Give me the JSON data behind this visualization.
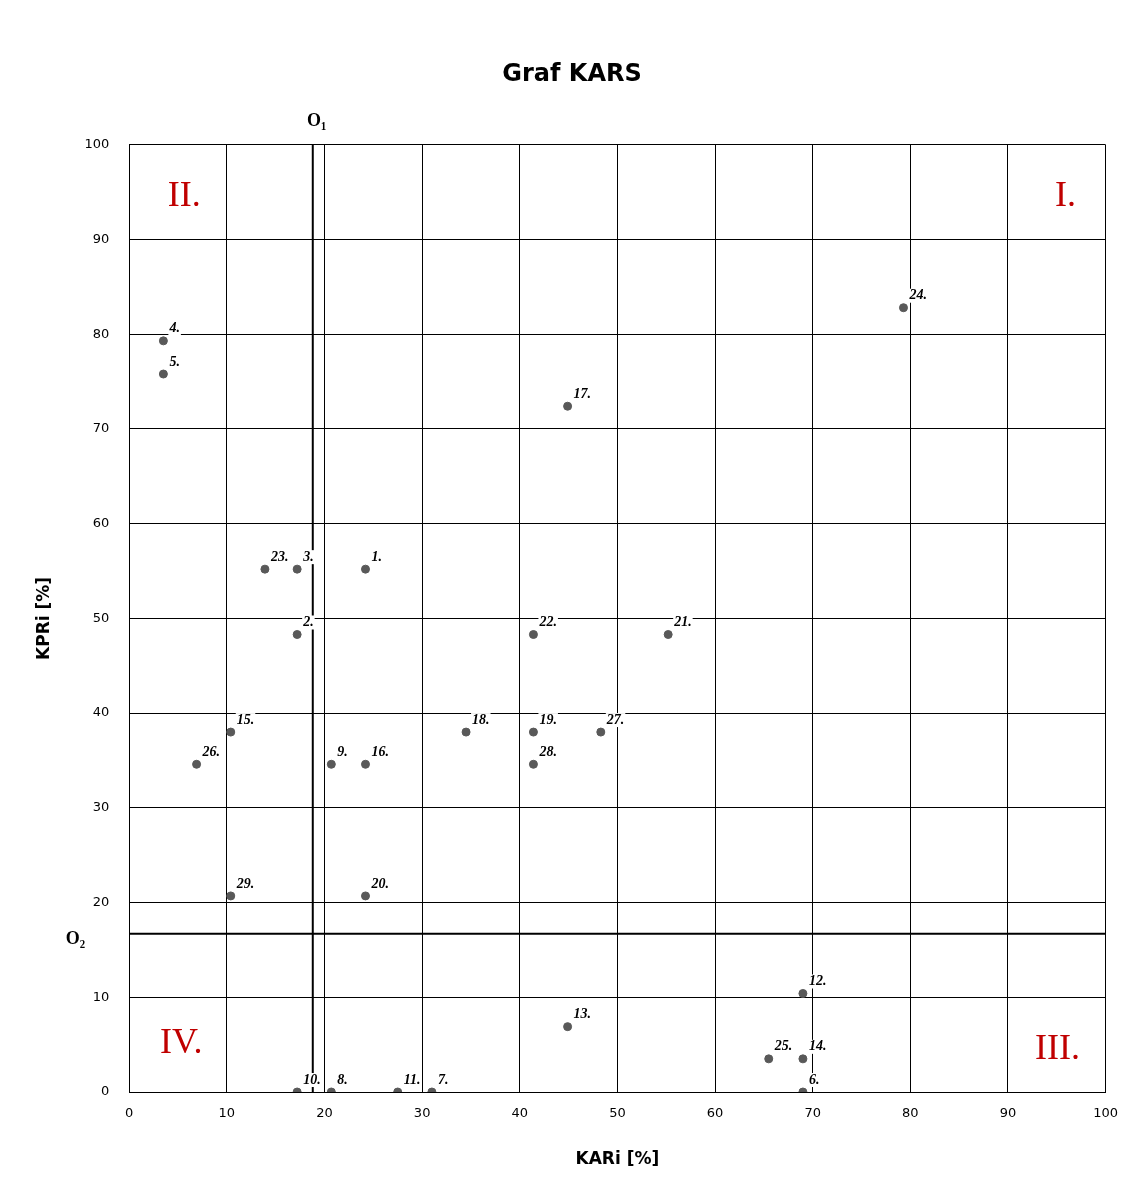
{
  "chart_data": {
    "type": "scatter",
    "title": "Graf KARS",
    "xlabel": "KARi [%]",
    "ylabel": "KPRi [%]",
    "x": [
      24.2,
      17.2,
      17.2,
      3.5,
      3.5,
      69.0,
      31.0,
      20.7,
      20.7,
      17.2,
      27.5,
      69.0,
      44.9,
      69.0,
      10.4,
      24.2,
      44.9,
      34.5,
      41.4,
      24.2,
      55.2,
      41.4,
      13.9,
      79.3,
      65.5,
      6.9,
      48.3,
      41.4,
      10.4
    ],
    "series": [
      {
        "color": "#595959",
        "values": [
          55.2,
          48.3,
          55.2,
          79.3,
          75.8,
          0,
          0,
          0,
          34.6,
          0,
          0,
          10.4,
          6.9,
          3.5,
          38.0,
          34.6,
          72.4,
          38.0,
          38.0,
          20.7,
          48.3,
          48.3,
          55.2,
          82.8,
          3.5,
          34.6,
          38.0,
          34.6,
          20.7
        ]
      }
    ],
    "xlim": [
      0,
      100
    ],
    "xticks": [
      0,
      10,
      20,
      30,
      40,
      50,
      60,
      70,
      80,
      90,
      100
    ],
    "ylim": [
      0,
      100
    ],
    "yticks": [
      0,
      10,
      20,
      30,
      40,
      50,
      60,
      70,
      80,
      90,
      100
    ],
    "grid": true,
    "legend": false,
    "marker": "circle",
    "ref_lines": [
      {
        "axis": "x",
        "value": 18.8,
        "label": "O₁",
        "color": "#000000"
      },
      {
        "axis": "y",
        "value": 16.7,
        "label": "O₂",
        "color": "#000000"
      }
    ],
    "annotations": [
      "II.",
      "I.",
      "IV.",
      "III.",
      {
        "text": "1.",
        "x": 24.2,
        "y": 55.2
      },
      {
        "text": "2.",
        "x": 17.2,
        "y": 48.3
      },
      {
        "text": "3.",
        "x": 17.2,
        "y": 55.2
      },
      {
        "text": "4.",
        "x": 3.5,
        "y": 79.3
      },
      {
        "text": "5.",
        "x": 3.5,
        "y": 75.8
      },
      {
        "text": "6.",
        "x": 69.0,
        "y": 0
      },
      {
        "text": "7.",
        "x": 31.0,
        "y": 0
      },
      {
        "text": "8.",
        "x": 20.7,
        "y": 0
      },
      {
        "text": "9.",
        "x": 20.7,
        "y": 34.6
      },
      {
        "text": "10.",
        "x": 17.2,
        "y": 0
      },
      {
        "text": "11.",
        "x": 27.5,
        "y": 0
      },
      {
        "text": "12.",
        "x": 69.0,
        "y": 10.4
      },
      {
        "text": "13.",
        "x": 44.9,
        "y": 6.9
      },
      {
        "text": "14.",
        "x": 69.0,
        "y": 3.5
      },
      {
        "text": "15.",
        "x": 10.4,
        "y": 38.0
      },
      {
        "text": "16.",
        "x": 24.2,
        "y": 34.6
      },
      {
        "text": "17.",
        "x": 44.9,
        "y": 72.4
      },
      {
        "text": "18.",
        "x": 34.5,
        "y": 38.0
      },
      {
        "text": "19.",
        "x": 41.4,
        "y": 38.0
      },
      {
        "text": "20.",
        "x": 24.2,
        "y": 20.7
      },
      {
        "text": "21.",
        "x": 55.2,
        "y": 48.3
      },
      {
        "text": "22.",
        "x": 41.4,
        "y": 48.3
      },
      {
        "text": "23.",
        "x": 13.9,
        "y": 55.2
      },
      {
        "text": "24.",
        "x": 79.3,
        "y": 82.8
      },
      {
        "text": "25.",
        "x": 65.5,
        "y": 3.5
      },
      {
        "text": "26.",
        "x": 6.9,
        "y": 34.6
      },
      {
        "text": "27.",
        "x": 48.3,
        "y": 38.0
      },
      {
        "text": "28.",
        "x": 41.4,
        "y": 34.6
      },
      {
        "text": "29.",
        "x": 10.4,
        "y": 20.7
      }
    ]
  }
}
